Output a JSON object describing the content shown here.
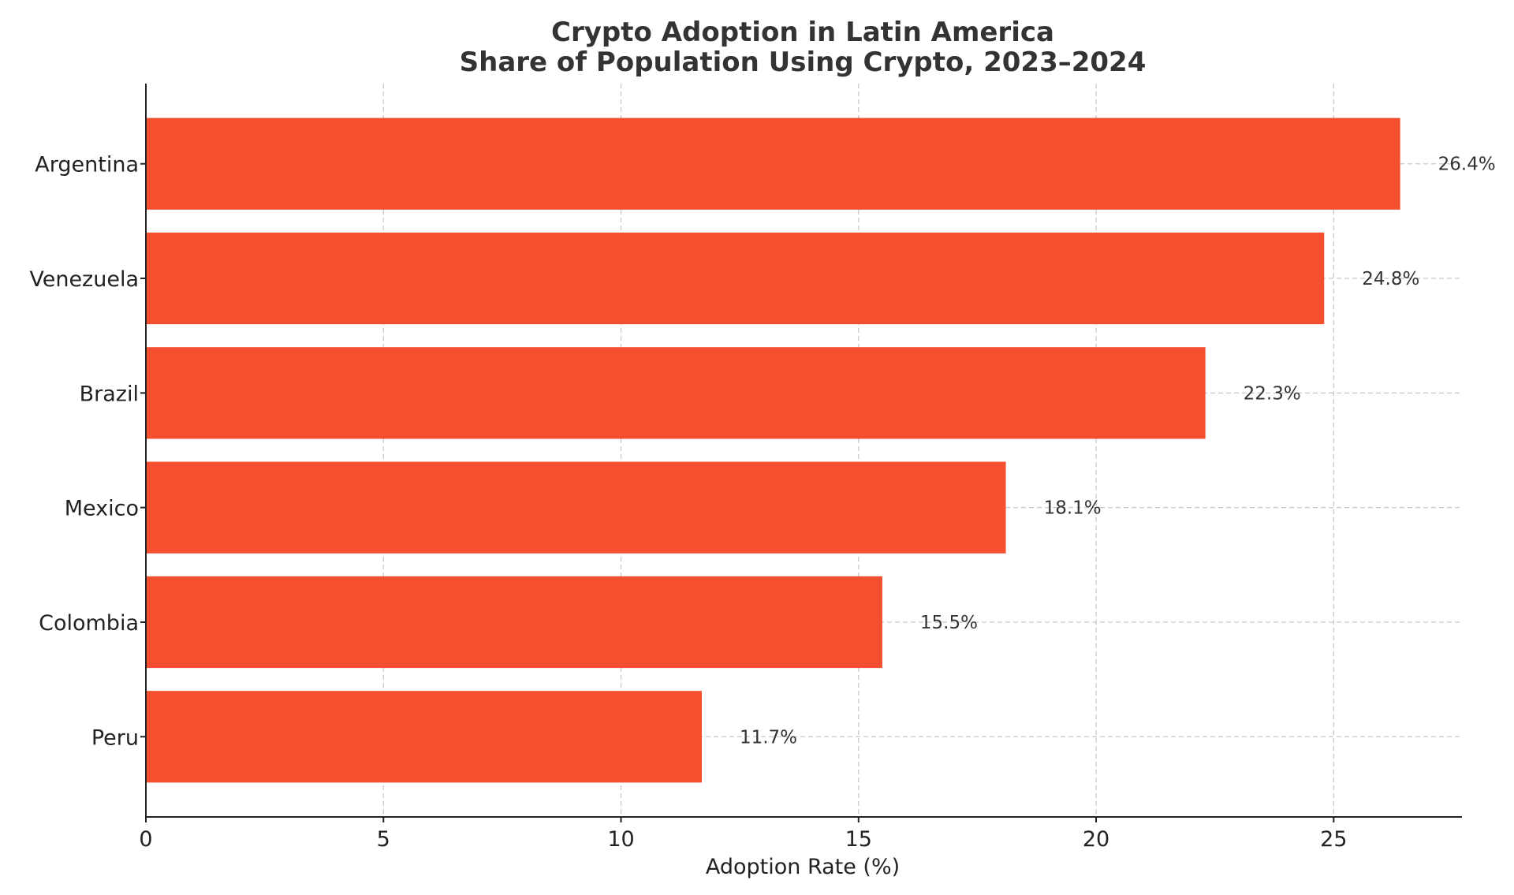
{
  "chart_data": {
    "type": "bar",
    "orientation": "horizontal",
    "title": "Crypto Adoption in Latin America",
    "subtitle": "Share of Population Using Crypto, 2023–2024",
    "xlabel": "Adoption Rate (%)",
    "ylabel": "",
    "xlim": [
      0,
      27.7
    ],
    "xticks": [
      0,
      5,
      10,
      15,
      20,
      25
    ],
    "grid": true,
    "bar_color": "#f44f2f",
    "categories": [
      "Argentina",
      "Venezuela",
      "Brazil",
      "Mexico",
      "Colombia",
      "Peru"
    ],
    "values": [
      26.4,
      24.8,
      22.3,
      18.1,
      15.5,
      11.7
    ],
    "data_labels": [
      "26.4%",
      "24.8%",
      "22.3%",
      "18.1%",
      "15.5%",
      "11.7%"
    ]
  }
}
